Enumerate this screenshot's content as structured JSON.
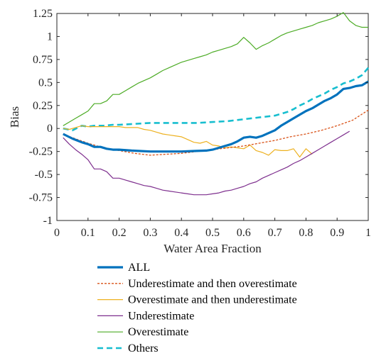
{
  "chart_data": {
    "type": "line",
    "title": "",
    "xlabel": "Water Area Fraction",
    "ylabel": "Bias",
    "xlim": [
      0,
      1
    ],
    "ylim": [
      -1,
      1.25
    ],
    "xticks": [
      0,
      0.1,
      0.2,
      0.3,
      0.4,
      0.5,
      0.6,
      0.7,
      0.8,
      0.9,
      1
    ],
    "xtick_labels": [
      "0",
      "0.1",
      "0.2",
      "0.3",
      "0.4",
      "0.5",
      "0.6",
      "0.7",
      "0.8",
      "0.9",
      "1"
    ],
    "yticks": [
      -1,
      -0.75,
      -0.5,
      -0.25,
      0,
      0.25,
      0.5,
      0.75,
      1,
      1.25
    ],
    "ytick_labels": [
      "-1",
      "-0.75",
      "-0.5",
      "-0.25",
      "0",
      "0.25",
      "0.5",
      "0.75",
      "1",
      "1.25"
    ],
    "grid": false,
    "legend_position": "below",
    "series": [
      {
        "name": "ALL",
        "color": "#0072BD",
        "style": "solid-thick",
        "x": [
          0.02,
          0.05,
          0.08,
          0.1,
          0.12,
          0.14,
          0.16,
          0.18,
          0.2,
          0.24,
          0.3,
          0.36,
          0.4,
          0.44,
          0.48,
          0.5,
          0.52,
          0.54,
          0.56,
          0.58,
          0.6,
          0.62,
          0.64,
          0.66,
          0.68,
          0.7,
          0.72,
          0.74,
          0.76,
          0.78,
          0.8,
          0.82,
          0.84,
          0.86,
          0.88,
          0.9,
          0.92,
          0.94,
          0.96,
          0.98,
          1.0
        ],
        "y": [
          -0.06,
          -0.11,
          -0.15,
          -0.17,
          -0.2,
          -0.2,
          -0.22,
          -0.23,
          -0.23,
          -0.24,
          -0.25,
          -0.25,
          -0.25,
          -0.245,
          -0.24,
          -0.23,
          -0.21,
          -0.19,
          -0.17,
          -0.14,
          -0.1,
          -0.09,
          -0.1,
          -0.08,
          -0.05,
          -0.02,
          0.03,
          0.07,
          0.11,
          0.15,
          0.19,
          0.22,
          0.26,
          0.3,
          0.33,
          0.37,
          0.43,
          0.44,
          0.46,
          0.47,
          0.51
        ]
      },
      {
        "name": "Underestimate and then overestimate",
        "color": "#D95319",
        "style": "dotted",
        "x": [
          0.02,
          0.05,
          0.1,
          0.15,
          0.2,
          0.25,
          0.3,
          0.35,
          0.4,
          0.45,
          0.5,
          0.55,
          0.6,
          0.65,
          0.7,
          0.75,
          0.8,
          0.85,
          0.9,
          0.95,
          1.0
        ],
        "y": [
          -0.06,
          -0.1,
          -0.16,
          -0.21,
          -0.24,
          -0.27,
          -0.29,
          -0.28,
          -0.27,
          -0.25,
          -0.23,
          -0.21,
          -0.19,
          -0.16,
          -0.13,
          -0.09,
          -0.06,
          -0.02,
          0.03,
          0.09,
          0.2
        ]
      },
      {
        "name": "Overestimate and then underestimate",
        "color": "#EDB120",
        "style": "solid",
        "x": [
          0.02,
          0.04,
          0.06,
          0.08,
          0.1,
          0.12,
          0.14,
          0.16,
          0.18,
          0.2,
          0.22,
          0.24,
          0.26,
          0.28,
          0.3,
          0.32,
          0.34,
          0.36,
          0.38,
          0.4,
          0.42,
          0.44,
          0.46,
          0.48,
          0.5,
          0.52,
          0.54,
          0.56,
          0.58,
          0.6,
          0.62,
          0.64,
          0.66,
          0.68,
          0.7,
          0.72,
          0.74,
          0.76,
          0.78,
          0.8,
          0.81,
          0.82
        ],
        "y": [
          0.0,
          -0.01,
          0.01,
          0.03,
          0.02,
          0.02,
          0.02,
          0.02,
          0.02,
          0.02,
          0.01,
          0.01,
          0.01,
          -0.01,
          -0.02,
          -0.04,
          -0.06,
          -0.07,
          -0.08,
          -0.09,
          -0.12,
          -0.15,
          -0.16,
          -0.14,
          -0.18,
          -0.19,
          -0.21,
          -0.2,
          -0.21,
          -0.22,
          -0.18,
          -0.24,
          -0.26,
          -0.29,
          -0.23,
          -0.24,
          -0.24,
          -0.22,
          -0.31,
          -0.22,
          -0.25,
          -0.28
        ]
      },
      {
        "name": "Underestimate",
        "color": "#7E2F8E",
        "style": "solid",
        "x": [
          0.02,
          0.04,
          0.06,
          0.08,
          0.1,
          0.12,
          0.14,
          0.16,
          0.18,
          0.2,
          0.22,
          0.24,
          0.26,
          0.28,
          0.3,
          0.32,
          0.34,
          0.36,
          0.38,
          0.4,
          0.42,
          0.44,
          0.46,
          0.48,
          0.5,
          0.52,
          0.54,
          0.56,
          0.58,
          0.6,
          0.62,
          0.64,
          0.66,
          0.68,
          0.7,
          0.72,
          0.74,
          0.76,
          0.78,
          0.8,
          0.82,
          0.84,
          0.86,
          0.88,
          0.9,
          0.92,
          0.94
        ],
        "y": [
          -0.1,
          -0.17,
          -0.23,
          -0.28,
          -0.34,
          -0.44,
          -0.44,
          -0.47,
          -0.54,
          -0.54,
          -0.56,
          -0.58,
          -0.6,
          -0.62,
          -0.63,
          -0.65,
          -0.67,
          -0.68,
          -0.69,
          -0.7,
          -0.71,
          -0.72,
          -0.72,
          -0.72,
          -0.71,
          -0.7,
          -0.68,
          -0.67,
          -0.65,
          -0.63,
          -0.6,
          -0.58,
          -0.54,
          -0.51,
          -0.48,
          -0.45,
          -0.42,
          -0.38,
          -0.35,
          -0.31,
          -0.27,
          -0.23,
          -0.19,
          -0.15,
          -0.11,
          -0.07,
          -0.03
        ]
      },
      {
        "name": "Overestimate",
        "color": "#4DAC26",
        "style": "solid",
        "x": [
          0.02,
          0.04,
          0.06,
          0.08,
          0.1,
          0.12,
          0.14,
          0.16,
          0.18,
          0.2,
          0.22,
          0.24,
          0.26,
          0.28,
          0.3,
          0.32,
          0.34,
          0.36,
          0.38,
          0.4,
          0.42,
          0.44,
          0.46,
          0.48,
          0.5,
          0.52,
          0.54,
          0.56,
          0.58,
          0.6,
          0.62,
          0.64,
          0.66,
          0.68,
          0.7,
          0.72,
          0.74,
          0.76,
          0.78,
          0.8,
          0.82,
          0.84,
          0.86,
          0.88,
          0.9,
          0.92,
          0.94,
          0.96,
          0.98,
          1.0
        ],
        "y": [
          0.03,
          0.07,
          0.11,
          0.15,
          0.19,
          0.27,
          0.27,
          0.3,
          0.37,
          0.37,
          0.41,
          0.45,
          0.49,
          0.52,
          0.55,
          0.59,
          0.63,
          0.66,
          0.69,
          0.72,
          0.74,
          0.76,
          0.78,
          0.8,
          0.83,
          0.85,
          0.87,
          0.89,
          0.92,
          0.99,
          0.93,
          0.86,
          0.9,
          0.93,
          0.97,
          1.01,
          1.04,
          1.06,
          1.08,
          1.1,
          1.12,
          1.15,
          1.17,
          1.19,
          1.22,
          1.26,
          1.17,
          1.12,
          1.1,
          1.1
        ]
      },
      {
        "name": "Others",
        "color": "#17BECF",
        "style": "dashed-thick",
        "x": [
          0.02,
          0.05,
          0.08,
          0.1,
          0.12,
          0.15,
          0.18,
          0.2,
          0.25,
          0.3,
          0.35,
          0.4,
          0.45,
          0.5,
          0.55,
          0.6,
          0.65,
          0.7,
          0.72,
          0.74,
          0.76,
          0.78,
          0.8,
          0.82,
          0.84,
          0.86,
          0.88,
          0.9,
          0.92,
          0.94,
          0.96,
          0.98,
          1.0
        ],
        "y": [
          0.0,
          -0.02,
          0.03,
          0.02,
          0.03,
          0.03,
          0.04,
          0.04,
          0.05,
          0.06,
          0.06,
          0.06,
          0.06,
          0.07,
          0.08,
          0.1,
          0.12,
          0.14,
          0.16,
          0.18,
          0.21,
          0.25,
          0.28,
          0.32,
          0.35,
          0.38,
          0.42,
          0.45,
          0.49,
          0.51,
          0.54,
          0.58,
          0.66
        ]
      }
    ]
  }
}
